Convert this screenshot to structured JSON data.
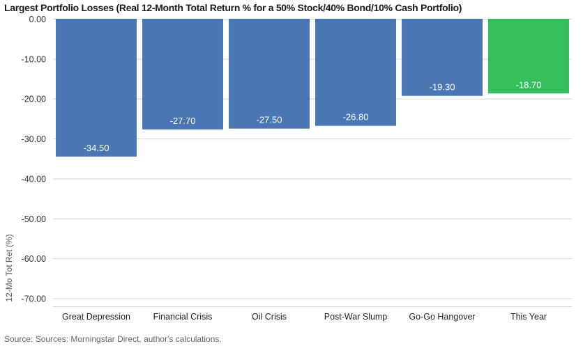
{
  "chart_data": {
    "type": "bar",
    "title": "Largest Portfolio Losses (Real 12-Month Total Return % for a 50% Stock/40% Bond/10% Cash Portfolio)",
    "categories": [
      "Great Depression",
      "Financial Crisis",
      "Oil Crisis",
      "Post-War Slump",
      "Go-Go Hangover",
      "This Year"
    ],
    "values": [
      -34.5,
      -27.7,
      -27.5,
      -26.8,
      -19.3,
      -18.7
    ],
    "value_labels": [
      "-34.50",
      "-27.70",
      "-27.50",
      "-26.80",
      "-19.30",
      "-18.70"
    ],
    "ylabel": "12-Mo Tot Ret (%)",
    "ylim": [
      -72,
      0
    ],
    "yticks": [
      0,
      -10,
      -20,
      -30,
      -40,
      -50,
      -60,
      -70
    ],
    "ytick_labels": [
      "0.00",
      "-10.00",
      "-20.00",
      "-30.00",
      "-40.00",
      "-50.00",
      "-60.00",
      "-70.00"
    ],
    "grid": true,
    "colors": {
      "default_bar": "#4a76b4",
      "highlight_bar": "#35bf5c",
      "grid": "#d6d6d6"
    },
    "highlight_index": 5
  },
  "footer": {
    "source": "Source: Sources: Morningstar Direct, author's calculations."
  }
}
